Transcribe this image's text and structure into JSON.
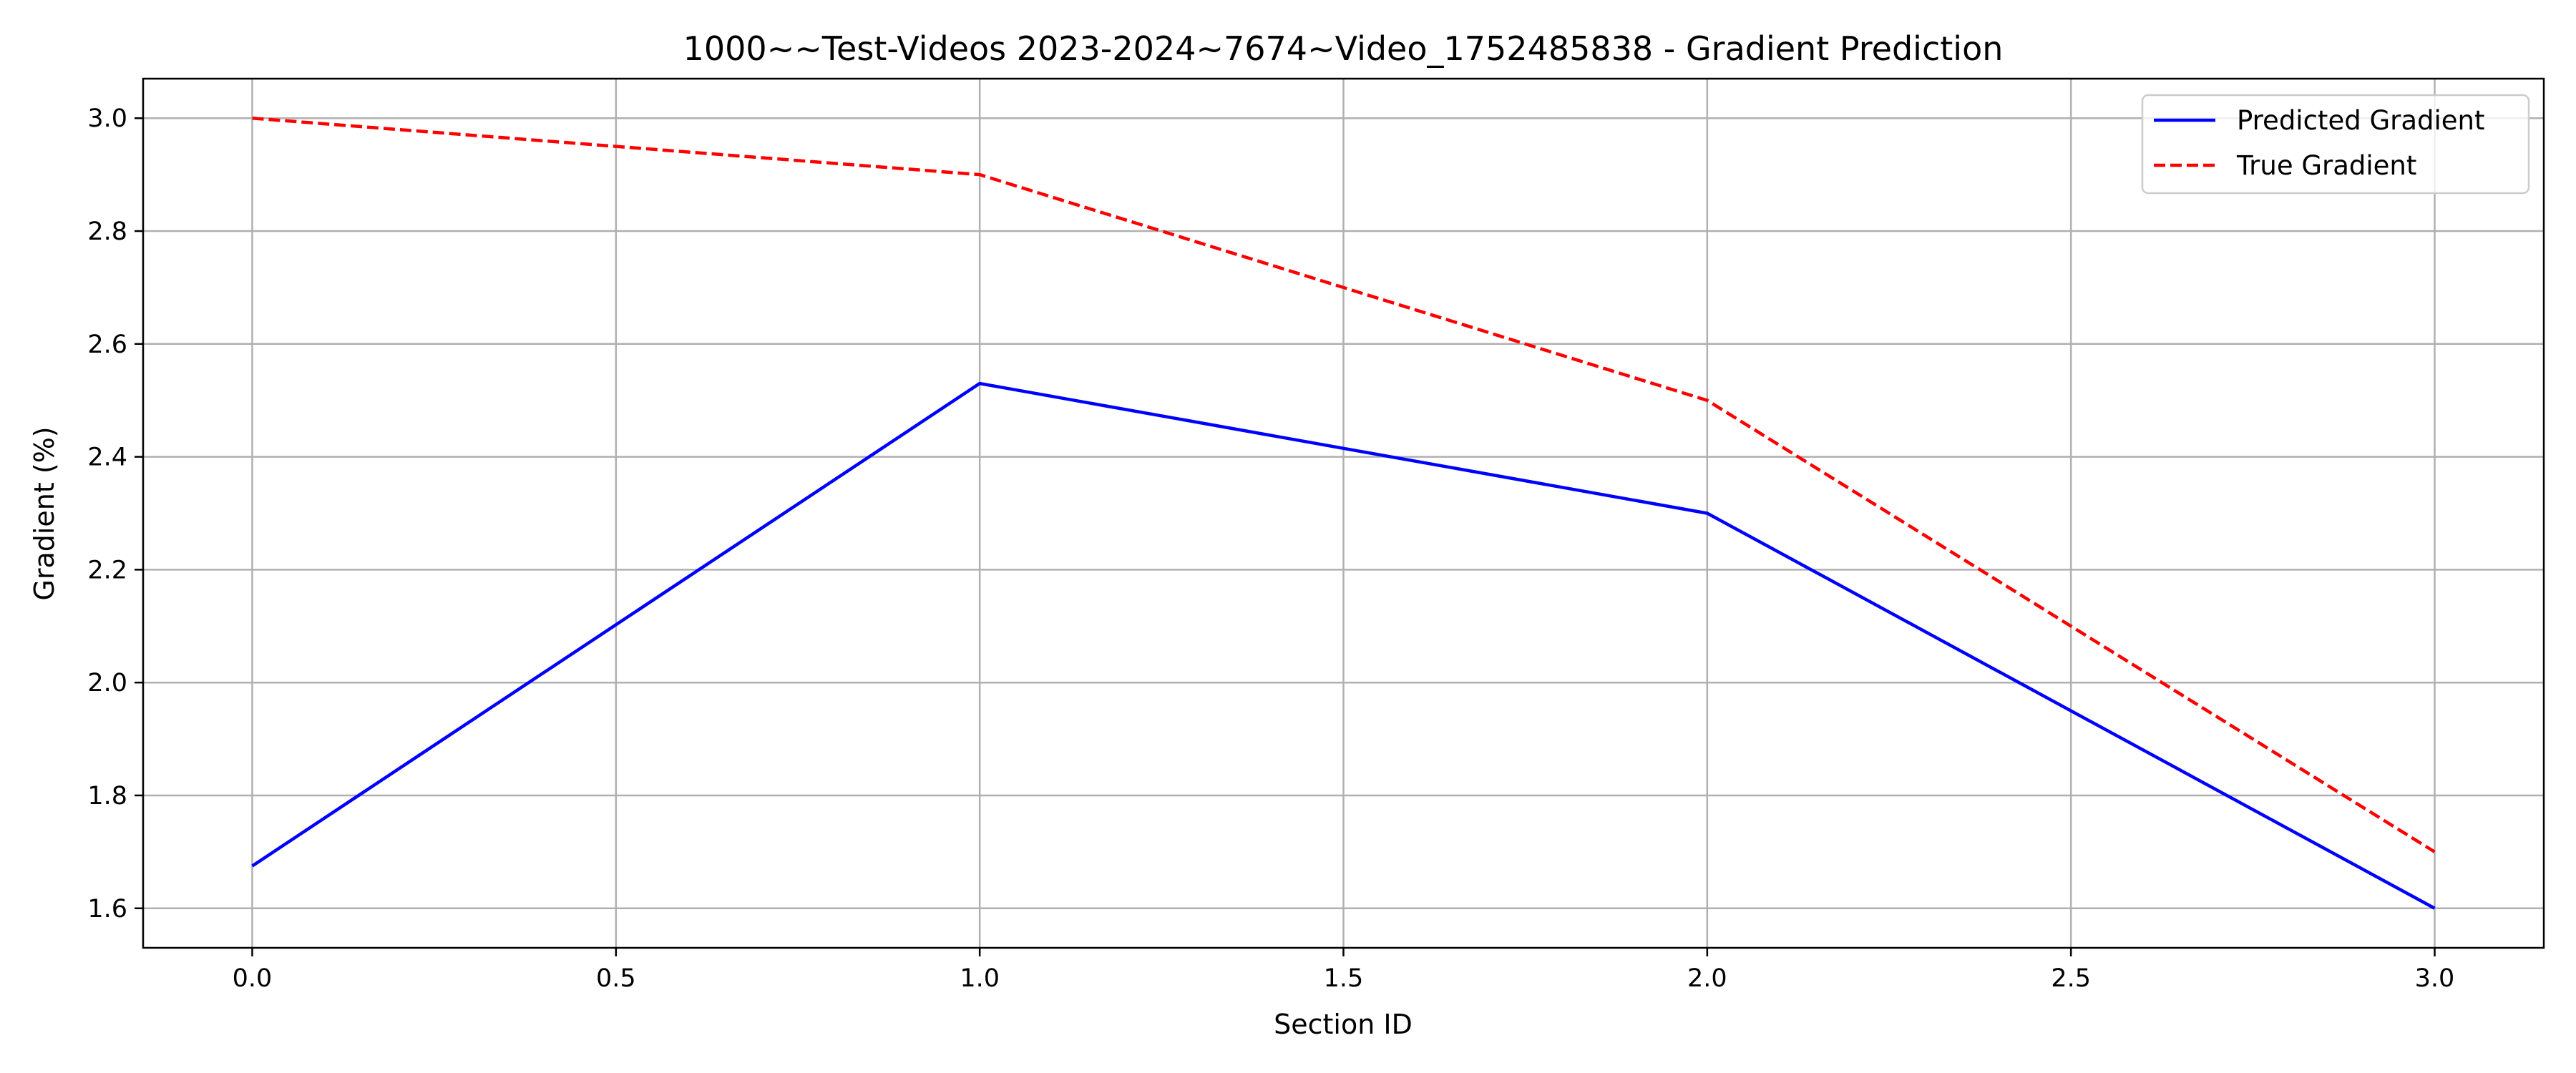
{
  "chart_data": {
    "type": "line",
    "title": "1000~~Test-Videos 2023-2024~7674~Video_1752485838 - Gradient Prediction",
    "xlabel": "Section ID",
    "ylabel": "Gradient (%)",
    "x": [
      0,
      1,
      2,
      3
    ],
    "xticks": [
      "0.0",
      "0.5",
      "1.0",
      "1.5",
      "2.0",
      "2.5",
      "3.0"
    ],
    "yticks": [
      "1.6",
      "1.8",
      "2.0",
      "2.2",
      "2.4",
      "2.6",
      "2.8",
      "3.0"
    ],
    "xlim": [
      -0.15,
      3.15
    ],
    "ylim": [
      1.53,
      3.07
    ],
    "grid": true,
    "legend_position": "top-right",
    "series": [
      {
        "name": "Predicted Gradient",
        "values": [
          1.675,
          2.53,
          2.3,
          1.6
        ],
        "color": "#0000ff",
        "style": "solid"
      },
      {
        "name": "True Gradient",
        "values": [
          3.0,
          2.9,
          2.5,
          1.7
        ],
        "color": "#ff0000",
        "style": "dashed"
      }
    ]
  }
}
